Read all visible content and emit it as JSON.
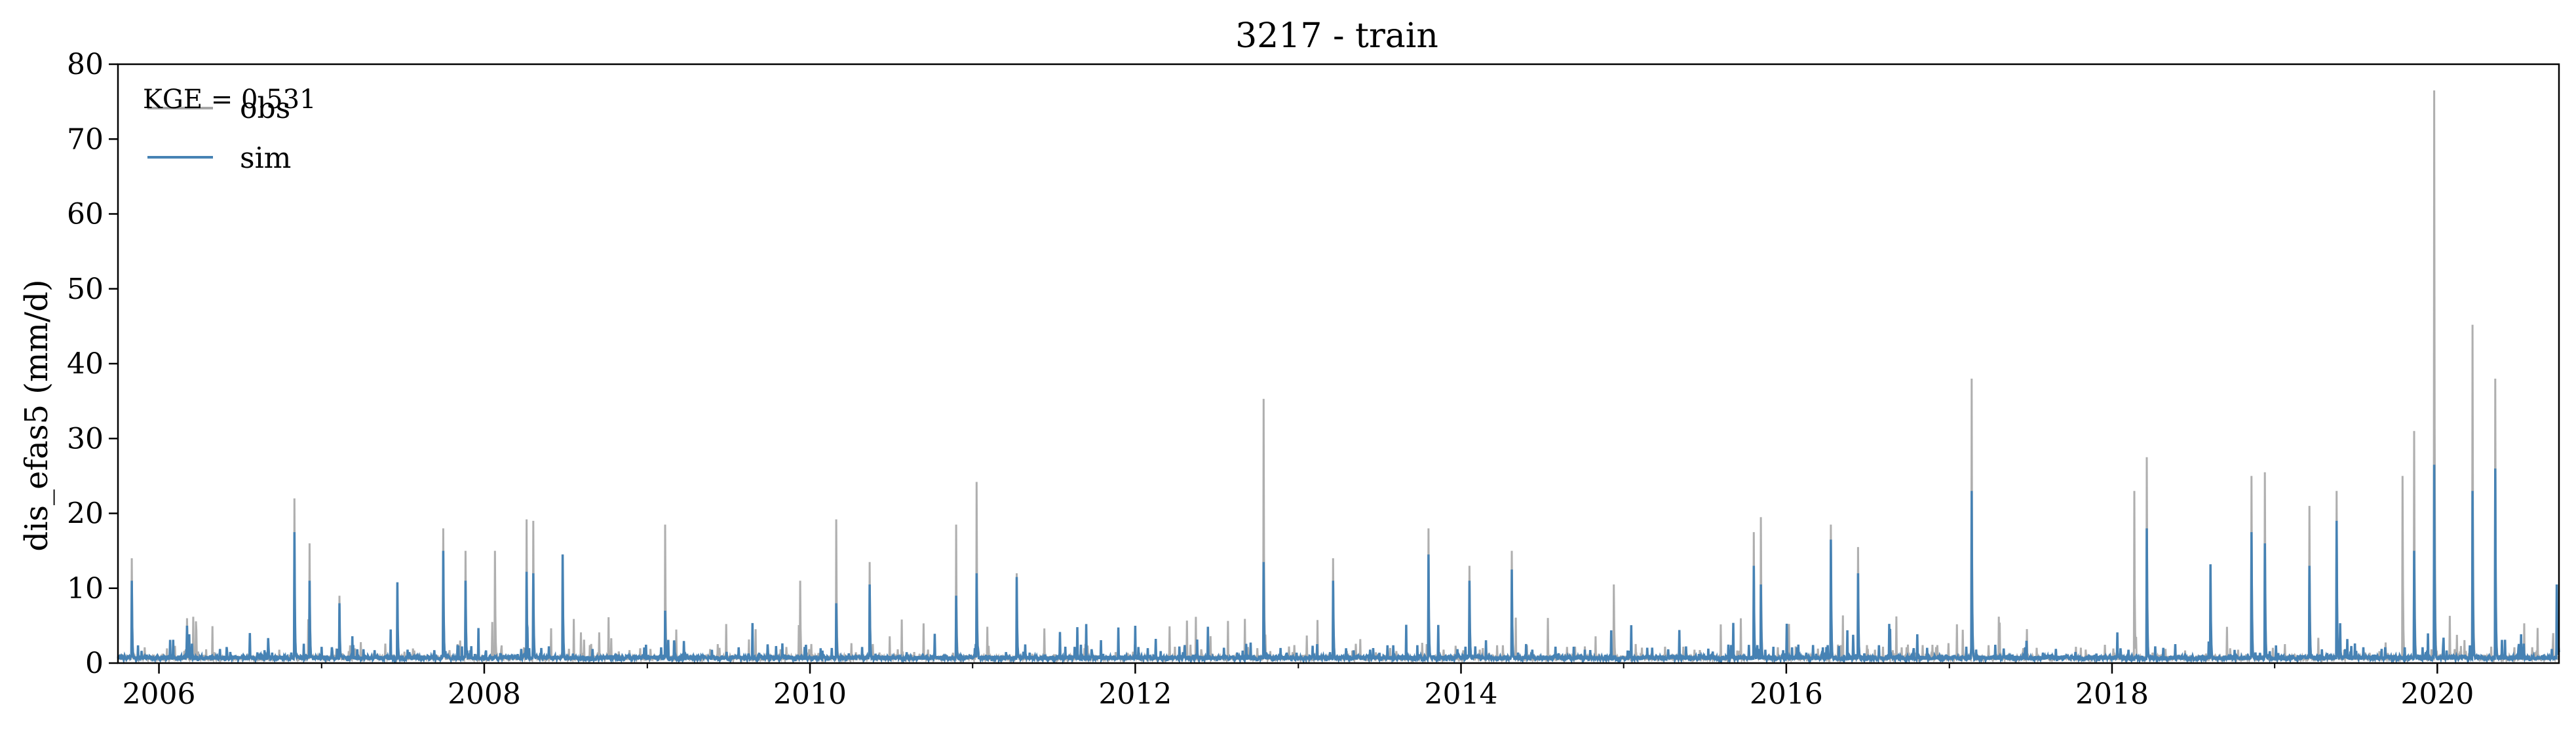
{
  "chart_data": {
    "type": "line",
    "title": "3217 - train",
    "xlabel": "",
    "ylabel": "dis_efas5 (mm/d)",
    "xlim": [
      "2005-10-01",
      "2020-09-30"
    ],
    "ylim": [
      0,
      80
    ],
    "x_ticks": [
      "2006",
      "2008",
      "2010",
      "2012",
      "2014",
      "2016",
      "2018",
      "2020"
    ],
    "y_ticks": [
      "0",
      "10",
      "20",
      "30",
      "40",
      "50",
      "60",
      "70",
      "80"
    ],
    "grid": false,
    "legend": {
      "placement": "top-left"
    },
    "annotation": "KGE = 0.531",
    "baseline": 0.4,
    "series": [
      {
        "name": "obs",
        "color": "#a6a6a6",
        "peaks": [
          [
            "2005-11-01",
            14.0
          ],
          [
            "2006-03-05",
            6.0
          ],
          [
            "2006-11-01",
            22.0
          ],
          [
            "2006-12-05",
            16.0
          ],
          [
            "2007-02-10",
            9.0
          ],
          [
            "2007-10-01",
            18.0
          ],
          [
            "2007-11-20",
            15.0
          ],
          [
            "2008-01-25",
            15.0
          ],
          [
            "2008-04-05",
            19.2
          ],
          [
            "2008-04-20",
            19.0
          ],
          [
            "2008-06-25",
            14.5
          ],
          [
            "2009-02-10",
            18.5
          ],
          [
            "2009-12-10",
            11.0
          ],
          [
            "2010-03-01",
            19.2
          ],
          [
            "2010-05-15",
            13.5
          ],
          [
            "2010-11-25",
            18.5
          ],
          [
            "2011-01-10",
            24.2
          ],
          [
            "2011-04-10",
            12.0
          ],
          [
            "2012-10-15",
            35.3
          ],
          [
            "2013-03-20",
            14.0
          ],
          [
            "2013-10-20",
            18.0
          ],
          [
            "2014-01-20",
            13.0
          ],
          [
            "2014-04-25",
            15.0
          ],
          [
            "2014-12-10",
            10.5
          ],
          [
            "2015-10-20",
            17.5
          ],
          [
            "2015-11-05",
            19.5
          ],
          [
            "2016-04-10",
            18.5
          ],
          [
            "2016-06-10",
            15.5
          ],
          [
            "2017-02-20",
            38.0
          ],
          [
            "2018-02-20",
            23.0
          ],
          [
            "2018-03-20",
            27.5
          ],
          [
            "2018-11-10",
            25.0
          ],
          [
            "2018-12-10",
            25.5
          ],
          [
            "2019-03-20",
            21.0
          ],
          [
            "2019-05-20",
            23.0
          ],
          [
            "2019-10-15",
            25.0
          ],
          [
            "2019-11-10",
            31.0
          ],
          [
            "2019-12-25",
            76.5
          ],
          [
            "2020-03-20",
            45.2
          ],
          [
            "2020-05-10",
            38.0
          ]
        ]
      },
      {
        "name": "sim",
        "color": "#4682b4",
        "peaks": [
          [
            "2005-11-01",
            11.0
          ],
          [
            "2006-03-05",
            5.0
          ],
          [
            "2006-11-01",
            17.5
          ],
          [
            "2006-12-05",
            11.0
          ],
          [
            "2007-02-10",
            8.0
          ],
          [
            "2007-06-20",
            10.8
          ],
          [
            "2007-10-01",
            15.0
          ],
          [
            "2007-11-20",
            11.0
          ],
          [
            "2008-04-05",
            12.2
          ],
          [
            "2008-04-20",
            12.0
          ],
          [
            "2008-06-25",
            14.5
          ],
          [
            "2009-02-10",
            7.0
          ],
          [
            "2010-03-01",
            8.0
          ],
          [
            "2010-05-15",
            10.5
          ],
          [
            "2010-11-25",
            9.0
          ],
          [
            "2011-01-10",
            12.0
          ],
          [
            "2011-04-10",
            11.5
          ],
          [
            "2012-10-15",
            13.5
          ],
          [
            "2013-03-20",
            11.0
          ],
          [
            "2013-10-20",
            14.5
          ],
          [
            "2014-01-20",
            11.0
          ],
          [
            "2014-04-25",
            12.5
          ],
          [
            "2015-10-20",
            13.0
          ],
          [
            "2015-11-05",
            10.5
          ],
          [
            "2016-04-10",
            16.5
          ],
          [
            "2016-06-10",
            12.0
          ],
          [
            "2017-02-20",
            23.0
          ],
          [
            "2018-03-20",
            18.0
          ],
          [
            "2018-08-10",
            13.2
          ],
          [
            "2018-11-10",
            17.5
          ],
          [
            "2018-12-10",
            16.0
          ],
          [
            "2019-03-20",
            13.0
          ],
          [
            "2019-05-20",
            19.0
          ],
          [
            "2019-11-10",
            15.0
          ],
          [
            "2019-12-25",
            26.5
          ],
          [
            "2020-03-20",
            23.0
          ],
          [
            "2020-05-10",
            26.0
          ],
          [
            "2020-09-25",
            10.5
          ]
        ]
      }
    ]
  }
}
